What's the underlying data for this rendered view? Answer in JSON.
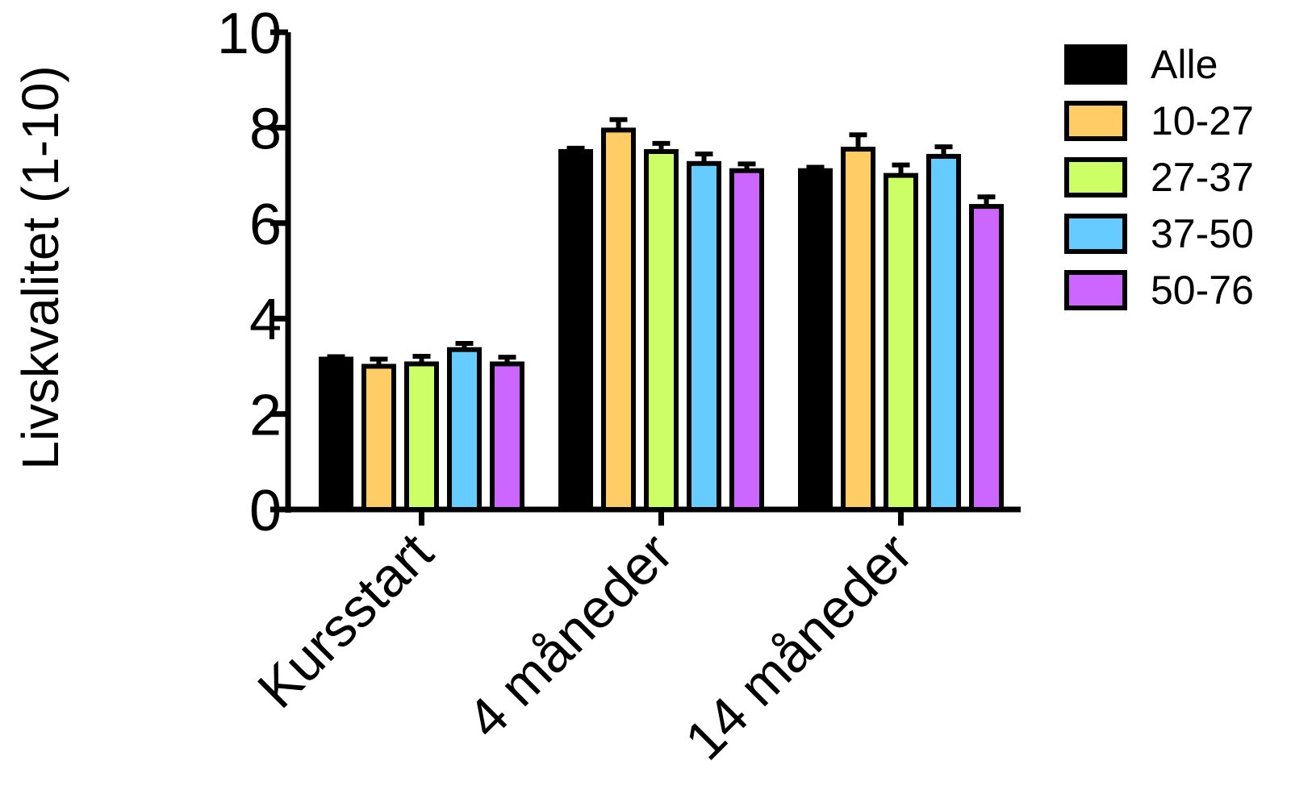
{
  "chart_data": {
    "type": "bar",
    "title": "",
    "xlabel": "",
    "ylabel": "Livskvalitet (1-10)",
    "ylim": [
      0,
      10
    ],
    "yticks": [
      "0",
      "2",
      "4",
      "6",
      "8",
      "10"
    ],
    "categories": [
      "Kursstart",
      "4 måneder",
      "14 måneder"
    ],
    "legend_position": "top-right",
    "grid": false,
    "error_bars": true,
    "series": [
      {
        "name": "Alle",
        "color": "#000000",
        "values": [
          3.15,
          7.5,
          7.1
        ],
        "errors": [
          0.05,
          0.07,
          0.07
        ]
      },
      {
        "name": "10-27",
        "color": "#FFCC66",
        "values": [
          3.0,
          7.95,
          7.55
        ],
        "errors": [
          0.15,
          0.22,
          0.3
        ]
      },
      {
        "name": "27-37",
        "color": "#CCFF66",
        "values": [
          3.05,
          7.5,
          7.0
        ],
        "errors": [
          0.16,
          0.17,
          0.22
        ]
      },
      {
        "name": "37-50",
        "color": "#66CCFF",
        "values": [
          3.35,
          7.25,
          7.4
        ],
        "errors": [
          0.13,
          0.2,
          0.2
        ]
      },
      {
        "name": "50-76",
        "color": "#CC66FF",
        "values": [
          3.05,
          7.1,
          6.35
        ],
        "errors": [
          0.14,
          0.14,
          0.2
        ]
      }
    ]
  }
}
